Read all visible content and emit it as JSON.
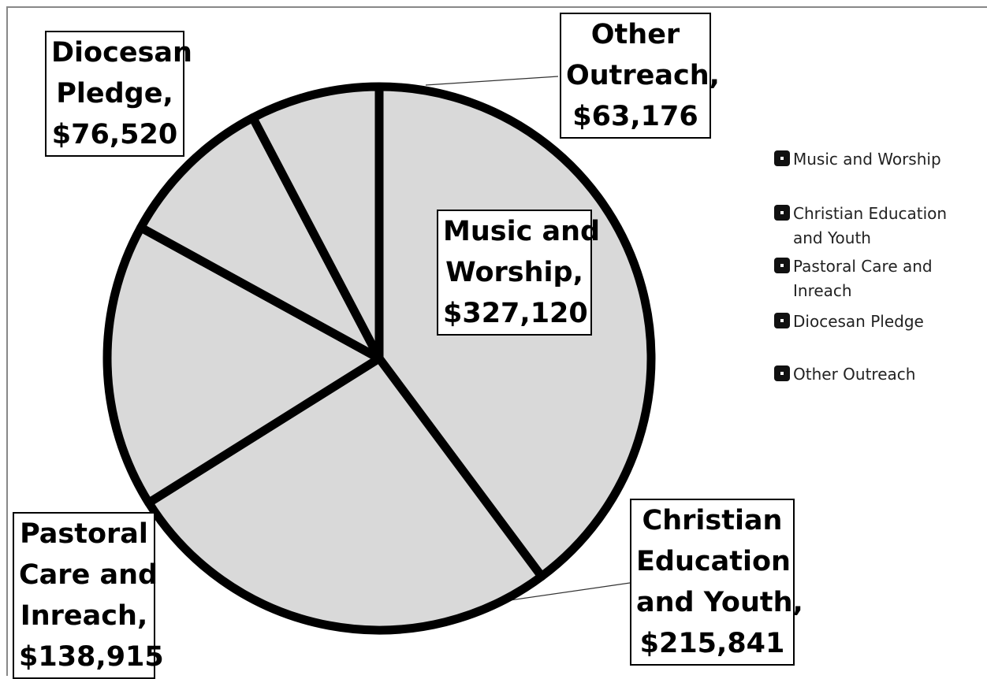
{
  "chart_data": {
    "type": "pie",
    "title": "",
    "categories": [
      "Music and Worship",
      "Christian Education and Youth",
      "Pastoral Care and Inreach",
      "Diocesan Pledge",
      "Other Outreach"
    ],
    "values": [
      327120,
      215841,
      138915,
      76520,
      63176
    ],
    "data_labels": [
      {
        "lines": [
          "Music and",
          "Worship,",
          "$327,120"
        ]
      },
      {
        "lines": [
          "Christian",
          "Education",
          "and Youth,",
          "$215,841"
        ]
      },
      {
        "lines": [
          "Pastoral",
          "Care and",
          "Inreach,",
          "$138,915"
        ]
      },
      {
        "lines": [
          "Diocesan",
          "Pledge,",
          "$76,520"
        ]
      },
      {
        "lines": [
          "Other",
          "Outreach,",
          "$63,176"
        ]
      }
    ],
    "legend": {
      "position": "right",
      "entries": [
        "Music and Worship",
        "Christian Education and Youth",
        "Pastoral Care and Inreach",
        "Diocesan Pledge",
        "Other Outreach"
      ]
    },
    "slice_fill": "#d9d9d9",
    "slice_stroke": "#000000",
    "legend_swatch_color": "#111111",
    "start": "12 o'clock, clockwise"
  }
}
